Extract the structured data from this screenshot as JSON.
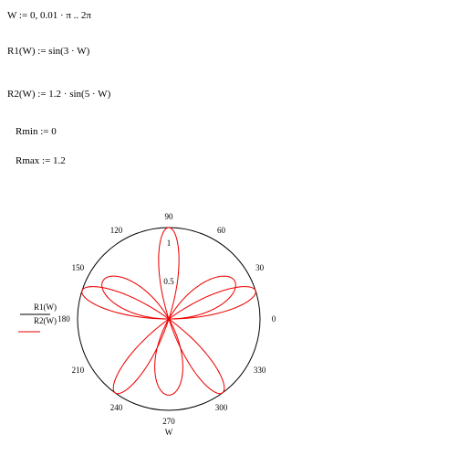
{
  "equations": [
    "W := 0, 0.01 · π .. 2π",
    "R1(W) := sin(3 · W)",
    "R2(W) := 1.2 · sin(5 · W)",
    "Rmin := 0",
    "Rmax := 1.2"
  ],
  "plot": {
    "angle_labels": [
      "0",
      "30",
      "60",
      "90",
      "120",
      "150",
      "180",
      "210",
      "240",
      "270",
      "300",
      "330"
    ],
    "radial_labels": [
      "0.5",
      "1"
    ],
    "legend": [
      "R1(W)",
      "R2(W)"
    ],
    "x_label": "W"
  }
}
